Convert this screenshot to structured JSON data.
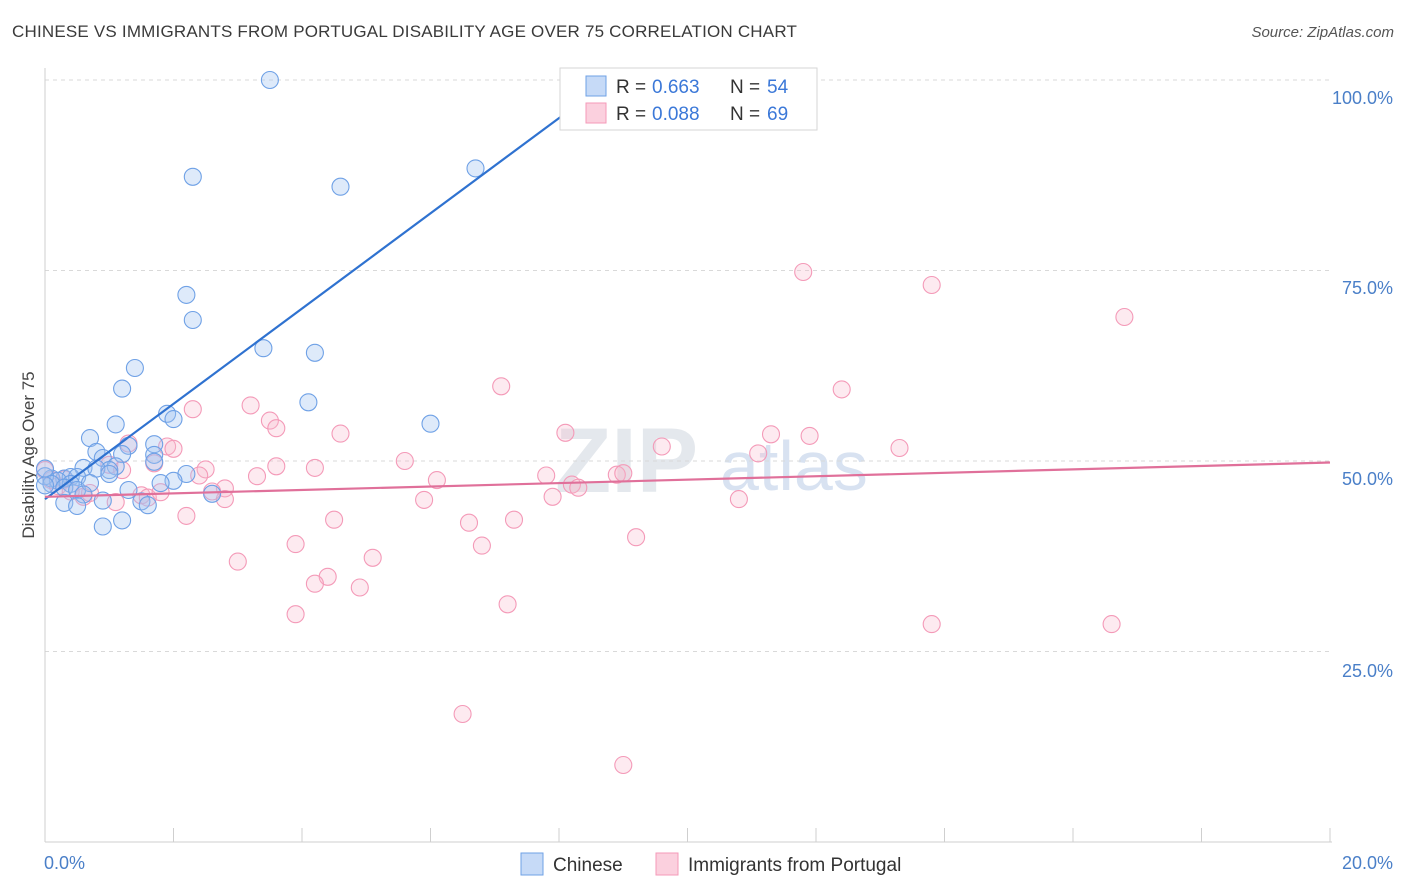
{
  "title": "CHINESE VS IMMIGRANTS FROM PORTUGAL DISABILITY AGE OVER 75 CORRELATION CHART",
  "source": "Source: ZipAtlas.com",
  "watermark": {
    "zip": "ZIP",
    "atlas": "atlas"
  },
  "colors": {
    "chinese": "#6fa1e6",
    "chinese_line": "#2f72d0",
    "portugal": "#f49ab8",
    "portugal_line": "#e0709a",
    "grid": "#d9d9d9",
    "tick_text": "#4a7fc8"
  },
  "legend": {
    "rows": [
      {
        "r_label": "R =",
        "r_value": "0.663",
        "n_label": "N =",
        "n_value": "54"
      },
      {
        "r_label": "R =",
        "r_value": "0.088",
        "n_label": "N =",
        "n_value": "69"
      }
    ]
  },
  "bottom_legend": [
    "Chinese",
    "Immigrants from Portugal"
  ],
  "chart_data": {
    "type": "scatter",
    "title": "CHINESE VS IMMIGRANTS FROM PORTUGAL DISABILITY AGE OVER 75 CORRELATION CHART",
    "xlabel": "",
    "ylabel": "Disability Age Over 75",
    "xlim": [
      0,
      20
    ],
    "ylim": [
      0,
      102
    ],
    "x_tick_labels": [
      "0.0%",
      "20.0%"
    ],
    "y_ticks": [
      25,
      50,
      75,
      100
    ],
    "y_tick_labels": [
      "25.0%",
      "50.0%",
      "75.0%",
      "100.0%"
    ],
    "grid": true,
    "legend_position": "top-center",
    "series": [
      {
        "name": "Chinese",
        "r": 0.663,
        "n": 54,
        "trend": {
          "x": [
            0,
            8.8
          ],
          "y": [
            45.0,
            100.0
          ],
          "solid_until_x": 8.1
        },
        "points": [
          [
            3.5,
            100.0
          ],
          [
            2.3,
            87.3
          ],
          [
            4.6,
            86.0
          ],
          [
            6.7,
            88.4
          ],
          [
            2.2,
            71.8
          ],
          [
            2.3,
            68.5
          ],
          [
            3.4,
            64.8
          ],
          [
            4.2,
            64.2
          ],
          [
            1.4,
            62.2
          ],
          [
            1.2,
            59.5
          ],
          [
            4.1,
            57.7
          ],
          [
            1.9,
            56.2
          ],
          [
            6.0,
            54.9
          ],
          [
            2.0,
            55.5
          ],
          [
            1.1,
            54.8
          ],
          [
            0.7,
            53.0
          ],
          [
            1.7,
            52.2
          ],
          [
            1.3,
            52.0
          ],
          [
            0.8,
            51.2
          ],
          [
            1.2,
            50.9
          ],
          [
            0.9,
            50.4
          ],
          [
            1.7,
            50.8
          ],
          [
            1.7,
            49.9
          ],
          [
            1.1,
            49.3
          ],
          [
            0.6,
            49.1
          ],
          [
            1.0,
            48.8
          ],
          [
            0.8,
            49.0
          ],
          [
            2.2,
            48.3
          ],
          [
            1.0,
            48.3
          ],
          [
            0.3,
            47.7
          ],
          [
            0.4,
            47.9
          ],
          [
            0.5,
            47.9
          ],
          [
            0.1,
            47.7
          ],
          [
            0.2,
            47.4
          ],
          [
            0.0,
            48.0
          ],
          [
            0.1,
            47.0
          ],
          [
            0.4,
            47.0
          ],
          [
            0.3,
            46.5
          ],
          [
            0.0,
            46.8
          ],
          [
            2.0,
            47.4
          ],
          [
            1.8,
            47.1
          ],
          [
            0.5,
            46.2
          ],
          [
            0.7,
            47.1
          ],
          [
            1.3,
            46.2
          ],
          [
            0.6,
            45.6
          ],
          [
            1.5,
            44.7
          ],
          [
            2.6,
            45.7
          ],
          [
            0.9,
            44.8
          ],
          [
            0.3,
            44.5
          ],
          [
            0.5,
            44.1
          ],
          [
            1.6,
            44.2
          ],
          [
            1.2,
            42.2
          ],
          [
            0.9,
            41.4
          ],
          [
            0.0,
            49.0
          ]
        ]
      },
      {
        "name": "Immigrants from Portugal",
        "r": 0.088,
        "n": 69,
        "trend": {
          "x": [
            0,
            20
          ],
          "y": [
            45.3,
            49.8
          ]
        },
        "points": [
          [
            11.8,
            74.8
          ],
          [
            13.8,
            73.1
          ],
          [
            16.8,
            68.9
          ],
          [
            7.1,
            59.8
          ],
          [
            12.4,
            59.4
          ],
          [
            2.3,
            56.8
          ],
          [
            3.2,
            57.3
          ],
          [
            3.5,
            55.3
          ],
          [
            3.6,
            54.3
          ],
          [
            4.6,
            53.6
          ],
          [
            8.1,
            53.7
          ],
          [
            11.3,
            53.5
          ],
          [
            11.9,
            53.3
          ],
          [
            1.3,
            52.3
          ],
          [
            1.9,
            51.9
          ],
          [
            2.0,
            51.6
          ],
          [
            9.6,
            51.9
          ],
          [
            13.3,
            51.7
          ],
          [
            11.1,
            51.0
          ],
          [
            5.6,
            50.0
          ],
          [
            1.7,
            49.7
          ],
          [
            1.0,
            49.5
          ],
          [
            1.2,
            48.8
          ],
          [
            2.5,
            48.9
          ],
          [
            3.6,
            49.3
          ],
          [
            4.2,
            49.1
          ],
          [
            3.3,
            48.0
          ],
          [
            6.1,
            47.5
          ],
          [
            7.8,
            48.1
          ],
          [
            8.9,
            48.2
          ],
          [
            9.0,
            48.4
          ],
          [
            8.2,
            46.9
          ],
          [
            8.3,
            46.5
          ],
          [
            2.4,
            48.1
          ],
          [
            2.8,
            46.4
          ],
          [
            1.5,
            45.5
          ],
          [
            1.6,
            45.2
          ],
          [
            0.6,
            45.3
          ],
          [
            0.1,
            47.5
          ],
          [
            0.2,
            46.7
          ],
          [
            0.4,
            46.0
          ],
          [
            0.7,
            45.8
          ],
          [
            2.8,
            45.0
          ],
          [
            5.9,
            44.9
          ],
          [
            7.9,
            45.3
          ],
          [
            10.8,
            45.0
          ],
          [
            2.2,
            42.8
          ],
          [
            4.5,
            42.3
          ],
          [
            6.6,
            41.9
          ],
          [
            7.3,
            42.3
          ],
          [
            9.2,
            40.0
          ],
          [
            3.9,
            39.1
          ],
          [
            6.8,
            38.9
          ],
          [
            5.1,
            37.3
          ],
          [
            3.0,
            36.8
          ],
          [
            4.4,
            34.8
          ],
          [
            4.2,
            33.9
          ],
          [
            4.9,
            33.4
          ],
          [
            7.2,
            31.2
          ],
          [
            3.9,
            29.9
          ],
          [
            13.8,
            28.6
          ],
          [
            16.6,
            28.6
          ],
          [
            6.5,
            16.8
          ],
          [
            9.0,
            10.1
          ],
          [
            0.0,
            48.8
          ],
          [
            0.3,
            47.6
          ],
          [
            1.8,
            45.9
          ],
          [
            2.6,
            46.0
          ],
          [
            1.1,
            44.6
          ]
        ]
      }
    ]
  }
}
